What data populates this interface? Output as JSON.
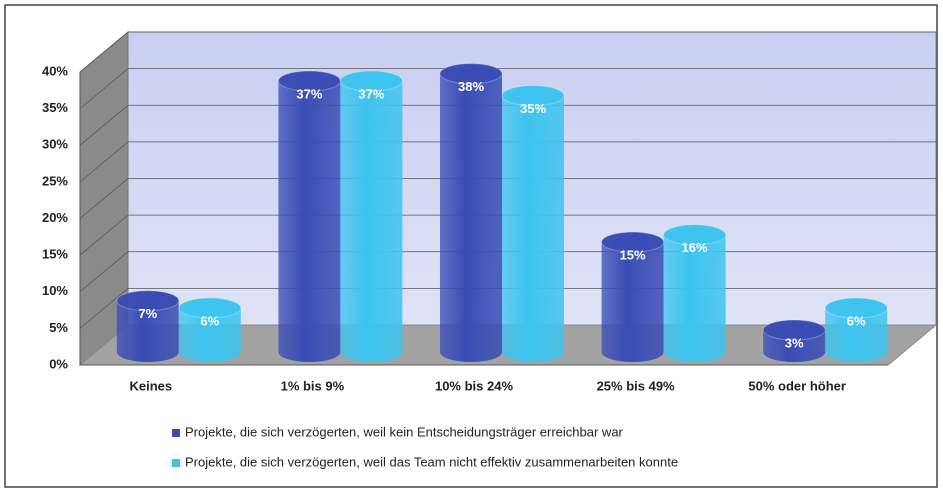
{
  "chart_data": {
    "type": "bar",
    "categories": [
      "Keines",
      "1% bis 9%",
      "10% bis 24%",
      "25% bis 49%",
      "50% oder höher"
    ],
    "series": [
      {
        "name": "Projekte, die sich verzögerten, weil kein Entscheidungsträger erreichbar war",
        "color": "#3a4db5",
        "values": [
          7,
          37,
          38,
          15,
          3
        ],
        "value_labels": [
          "7%",
          "37%",
          "38%",
          "15%",
          "3%"
        ]
      },
      {
        "name": "Projekte, die sich verzögerten, weil das Team nicht effektiv zusammenarbeiten konnte",
        "color": "#3ec4ef",
        "values": [
          6,
          37,
          35,
          16,
          6
        ],
        "value_labels": [
          "6%",
          "37%",
          "35%",
          "16%",
          "6%"
        ]
      }
    ],
    "ylim": [
      0,
      40
    ],
    "yticks": [
      {
        "value": 0,
        "label": "0%"
      },
      {
        "value": 5,
        "label": "5%"
      },
      {
        "value": 10,
        "label": "10%"
      },
      {
        "value": 15,
        "label": "15%"
      },
      {
        "value": 20,
        "label": "20%"
      },
      {
        "value": 25,
        "label": "25%"
      },
      {
        "value": 30,
        "label": "30%"
      },
      {
        "value": 35,
        "label": "35%"
      },
      {
        "value": 40,
        "label": "40%"
      }
    ],
    "grid": true,
    "legend": "bottom"
  }
}
